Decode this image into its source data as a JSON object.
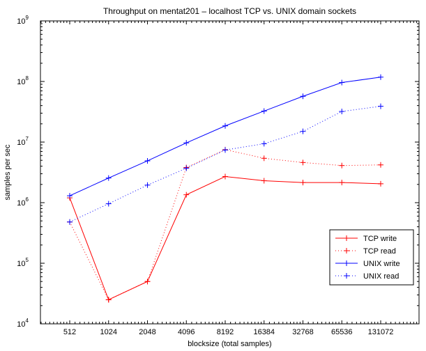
{
  "chart_data": {
    "type": "line",
    "title": "Throughput on mentat201 – localhost TCP vs. UNIX domain sockets",
    "xlabel": "blocksize (total samples)",
    "ylabel": "samples per sec",
    "yscale": "log",
    "categories": [
      "512",
      "1024",
      "2048",
      "4096",
      "8192",
      "16384",
      "32768",
      "65536",
      "131072"
    ],
    "ylim": [
      10000,
      1000000000
    ],
    "yticks": [
      {
        "base": "10",
        "exp": "4",
        "value": 10000
      },
      {
        "base": "10",
        "exp": "5",
        "value": 100000
      },
      {
        "base": "10",
        "exp": "6",
        "value": 1000000
      },
      {
        "base": "10",
        "exp": "7",
        "value": 10000000
      },
      {
        "base": "10",
        "exp": "8",
        "value": 100000000
      },
      {
        "base": "10",
        "exp": "9",
        "value": 1000000000
      }
    ],
    "grid": false,
    "legend_position": "bottom-right",
    "series": [
      {
        "name": "TCP write",
        "color": "#ff0000",
        "style": "solid",
        "values": [
          1200000,
          25000,
          50000,
          1350000,
          2700000,
          2300000,
          2150000,
          2150000,
          2050000
        ]
      },
      {
        "name": "TCP read",
        "color": "#ff0000",
        "style": "dotted",
        "values": [
          480000,
          25000,
          50000,
          3800000,
          7500000,
          5400000,
          4600000,
          4100000,
          4200000
        ]
      },
      {
        "name": "UNIX write",
        "color": "#0000ff",
        "style": "solid",
        "values": [
          1300000,
          2550000,
          4900000,
          9700000,
          18500000,
          32500000,
          57000000,
          96000000,
          118000000
        ]
      },
      {
        "name": "UNIX read",
        "color": "#0000ff",
        "style": "dotted",
        "values": [
          480000,
          960000,
          1950000,
          3700000,
          7400000,
          9400000,
          15000000,
          32000000,
          39000000
        ]
      }
    ]
  }
}
